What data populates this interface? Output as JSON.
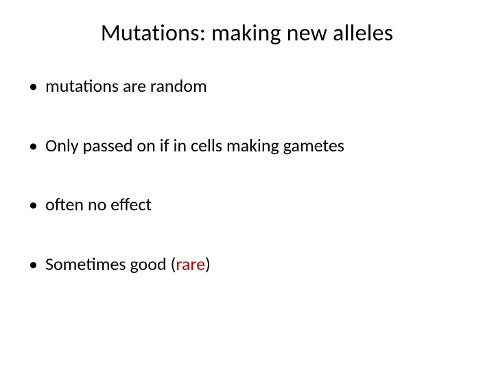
{
  "slide": {
    "title": "Mutations: making new alleles",
    "title_fontsize": 34,
    "body_fontsize": 26,
    "background_color": "#ffffff",
    "text_color": "#000000",
    "accent_color": "#c00000",
    "bullets": [
      {
        "text": "mutations are random"
      },
      {
        "text": "Only passed on if in cells making gametes"
      },
      {
        "text": "often no effect"
      },
      {
        "prefix": "Sometimes good  (",
        "accent": "rare",
        "suffix": ")"
      }
    ]
  }
}
